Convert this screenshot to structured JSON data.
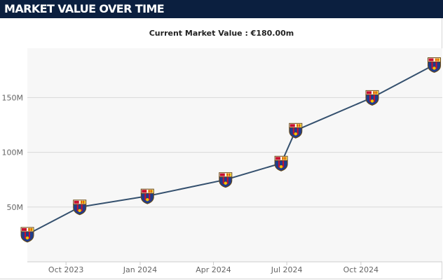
{
  "header": {
    "title": "MARKET VALUE OVER TIME"
  },
  "colors": {
    "header_bg": "#0b1f3f",
    "line": "#34506e",
    "plot_bg": "#f7f7f7",
    "grid": "#d9d9d9",
    "marker_blue": "#1f3c8c",
    "marker_red": "#c8102e",
    "marker_gold": "#f2c200"
  },
  "marker_icon": "club-crest-icon",
  "chart_data": {
    "type": "line",
    "title": "Current Market Value : €180.00m",
    "xlabel": "",
    "ylabel": "",
    "grid": true,
    "ylim": [
      0,
      195
    ],
    "yticks": [
      50,
      100,
      150
    ],
    "ytick_labels": [
      "50M",
      "100M",
      "150M"
    ],
    "xlim": [
      "2023-08-14",
      "2025-01-10"
    ],
    "xticks": [
      "2023-10-01",
      "2024-01-01",
      "2024-04-01",
      "2024-07-01",
      "2024-10-01"
    ],
    "xtick_labels": [
      "Oct 2023",
      "Jan 2024",
      "Apr 2024",
      "Jul 2024",
      "Oct 2024"
    ],
    "series": [
      {
        "x": [
          "2023-08-14",
          "2023-10-18",
          "2024-01-10",
          "2024-04-16",
          "2024-06-24",
          "2024-07-12",
          "2024-10-15",
          "2024-12-31"
        ],
        "values": [
          25,
          50,
          60,
          75,
          90,
          120,
          150,
          180
        ]
      }
    ]
  }
}
